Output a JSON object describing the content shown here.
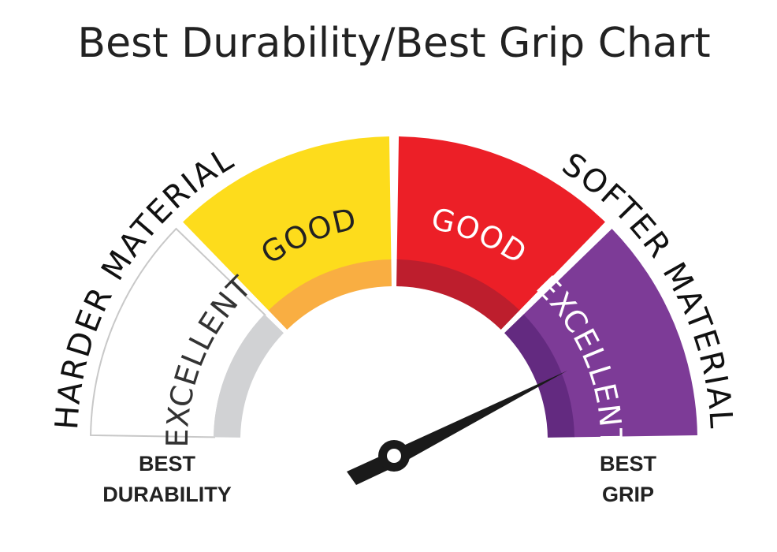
{
  "title": "Best Durability/Best Grip Chart",
  "scale": {
    "left_label": "HARDER MATERIAL",
    "right_label": "SOFTER MATERIAL"
  },
  "segments": [
    {
      "label": "EXCELLENT"
    },
    {
      "label": "GOOD"
    },
    {
      "label": "GOOD"
    },
    {
      "label": "EXCELLENT"
    }
  ],
  "ends": {
    "left": [
      "BEST",
      "DURABILITY"
    ],
    "right": [
      "BEST",
      "GRIP"
    ]
  }
}
